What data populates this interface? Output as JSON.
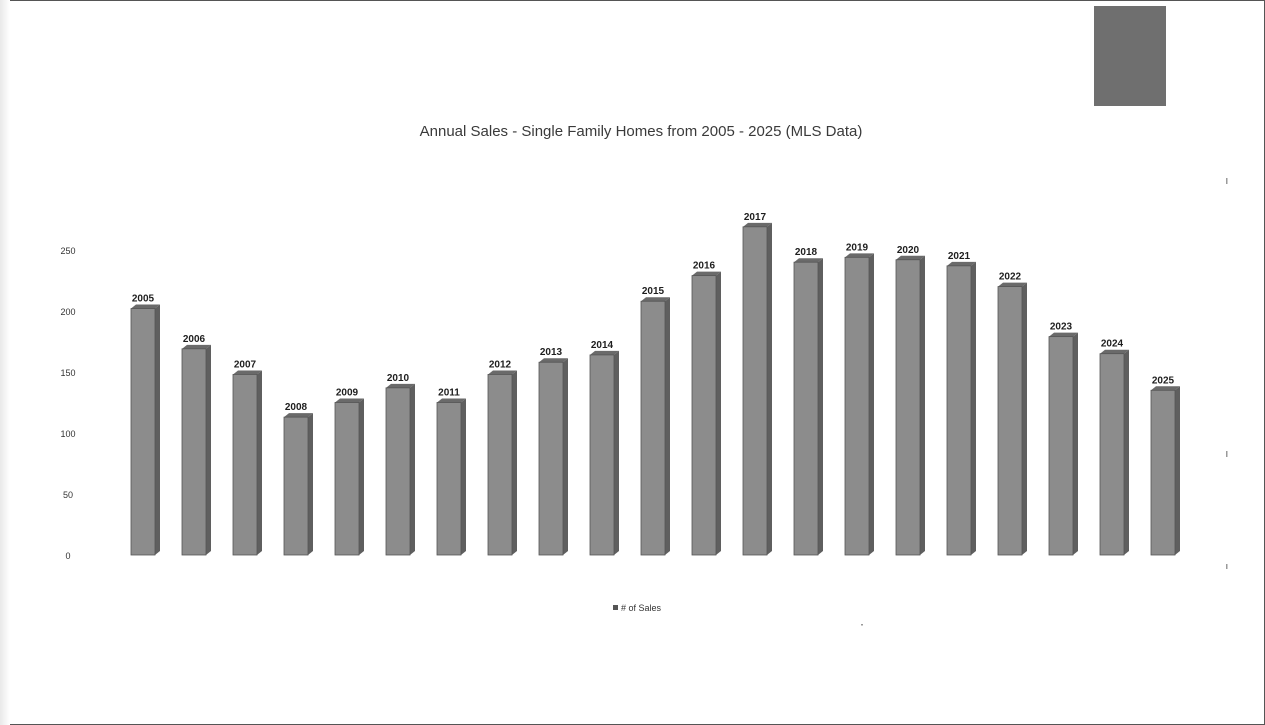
{
  "chart_data": {
    "type": "bar",
    "title": "Annual Sales - Single Family Homes from 2005 - 2025 (MLS Data)",
    "categories": [
      "2005",
      "2006",
      "2007",
      "2008",
      "2009",
      "2010",
      "2011",
      "2012",
      "2013",
      "2014",
      "2015",
      "2016",
      "2017",
      "2018",
      "2019",
      "2020",
      "2021",
      "2022",
      "2023",
      "2024",
      "2025"
    ],
    "series": [
      {
        "name": "# of Sales",
        "values": [
          202,
          169,
          148,
          113,
          125,
          137,
          125,
          148,
          158,
          164,
          208,
          229,
          269,
          240,
          244,
          242,
          237,
          220,
          179,
          165,
          135
        ],
        "color": "#8c8c8c"
      }
    ],
    "yticks": [
      0,
      50,
      100,
      150,
      200,
      250
    ],
    "ylim": [
      0,
      300
    ],
    "grid": false,
    "legend_position": "bottom",
    "legend_label": "# of Sales",
    "data_labels": "category"
  }
}
